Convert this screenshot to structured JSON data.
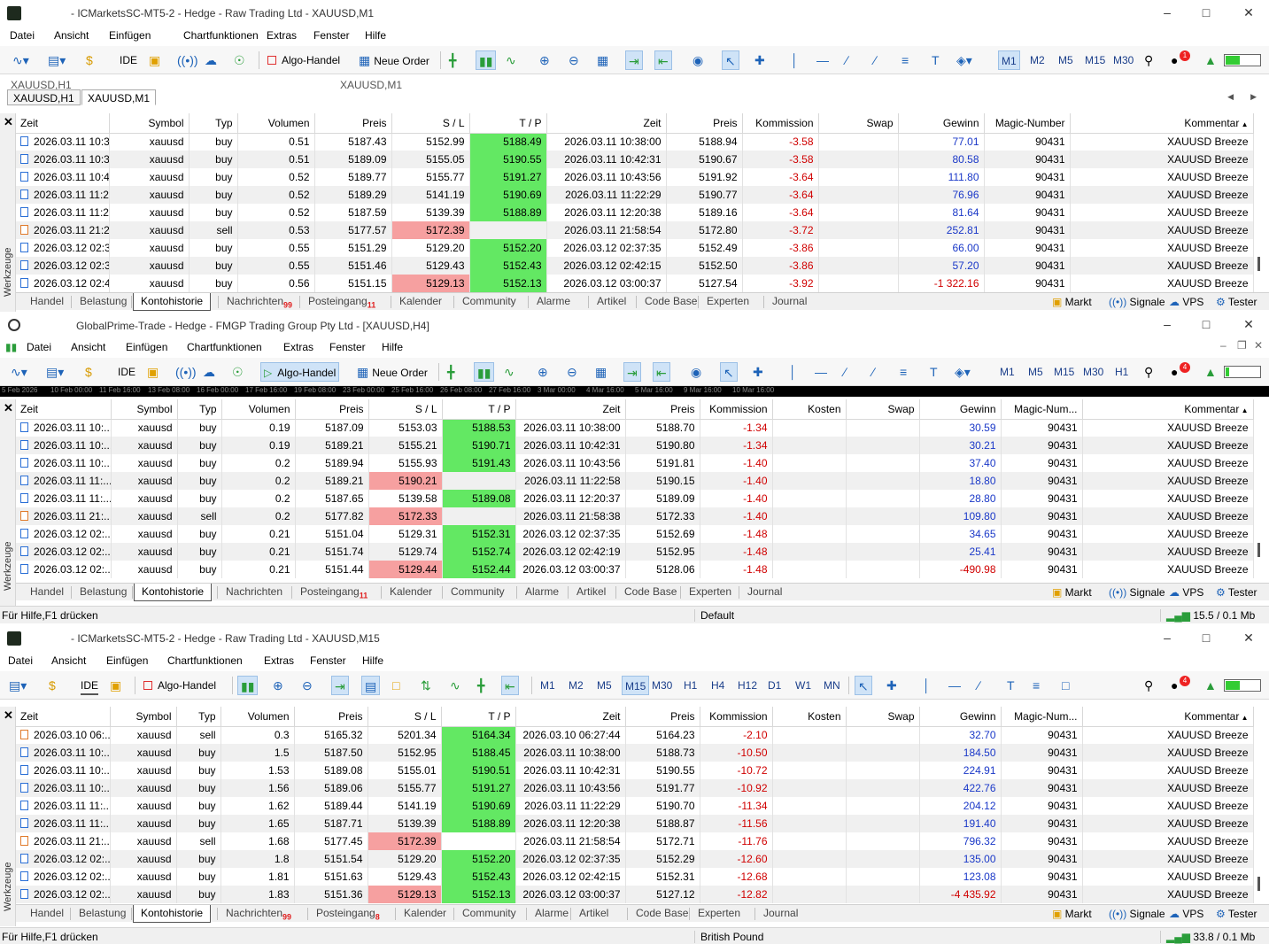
{
  "w1": {
    "title": "- ICMarketsSC-MT5-2 - Hedge - Raw Trading Ltd - XAUUSD,M1",
    "menu": [
      "Datei",
      "Ansicht",
      "Einfügen",
      "Chartfunktionen",
      "Extras",
      "Fenster",
      "Hilfe"
    ],
    "toolbar": {
      "ide": "IDE",
      "algo": "Algo-Handel",
      "neworder": "Neue Order",
      "tf": [
        "M1",
        "M2",
        "M5",
        "M15",
        "M30"
      ],
      "tf_selected": "M1",
      "badge": "1"
    },
    "tabs": [
      "XAUUSD,H1",
      "XAUUSD,M1"
    ],
    "ghosttabs": [
      "XAUUSD,H1",
      "XAUUSD,M1"
    ],
    "columns": [
      "Zeit",
      "Symbol",
      "Typ",
      "Volumen",
      "Preis",
      "S / L",
      "T / P",
      "Zeit",
      "Preis",
      "Kommission",
      "Swap",
      "Gewinn",
      "Magic-Number",
      "Kommentar"
    ],
    "rows": [
      [
        "2026.03.11 10:3...",
        "xauusd",
        "buy",
        "0.51",
        "5187.43",
        "5152.99",
        "5188.49",
        "2026.03.11 10:38:00",
        "5188.94",
        "-3.58",
        "",
        "77.01",
        "90431",
        "XAUUSD Breeze"
      ],
      [
        "2026.03.11 10:3...",
        "xauusd",
        "buy",
        "0.51",
        "5189.09",
        "5155.05",
        "5190.55",
        "2026.03.11 10:42:31",
        "5190.67",
        "-3.58",
        "",
        "80.58",
        "90431",
        "XAUUSD Breeze"
      ],
      [
        "2026.03.11 10:4...",
        "xauusd",
        "buy",
        "0.52",
        "5189.77",
        "5155.77",
        "5191.27",
        "2026.03.11 10:43:56",
        "5191.92",
        "-3.64",
        "",
        "111.80",
        "90431",
        "XAUUSD Breeze"
      ],
      [
        "2026.03.11 11:2...",
        "xauusd",
        "buy",
        "0.52",
        "5189.29",
        "5141.19",
        "5190.69",
        "2026.03.11 11:22:29",
        "5190.77",
        "-3.64",
        "",
        "76.96",
        "90431",
        "XAUUSD Breeze"
      ],
      [
        "2026.03.11 11:2...",
        "xauusd",
        "buy",
        "0.52",
        "5187.59",
        "5139.39",
        "5188.89",
        "2026.03.11 12:20:38",
        "5189.16",
        "-3.64",
        "",
        "81.64",
        "90431",
        "XAUUSD Breeze"
      ],
      [
        "2026.03.11 21:2...",
        "xauusd",
        "sell",
        "0.53",
        "5177.57",
        "5172.39",
        "",
        "2026.03.11 21:58:54",
        "5172.80",
        "-3.72",
        "",
        "252.81",
        "90431",
        "XAUUSD Breeze"
      ],
      [
        "2026.03.12 02:3...",
        "xauusd",
        "buy",
        "0.55",
        "5151.29",
        "5129.20",
        "5152.20",
        "2026.03.12 02:37:35",
        "5152.49",
        "-3.86",
        "",
        "66.00",
        "90431",
        "XAUUSD Breeze"
      ],
      [
        "2026.03.12 02:3...",
        "xauusd",
        "buy",
        "0.55",
        "5151.46",
        "5129.43",
        "5152.43",
        "2026.03.12 02:42:15",
        "5152.50",
        "-3.86",
        "",
        "57.20",
        "90431",
        "XAUUSD Breeze"
      ],
      [
        "2026.03.12 02:4...",
        "xauusd",
        "buy",
        "0.56",
        "5151.15",
        "5129.13",
        "5152.13",
        "2026.03.12 03:00:37",
        "5127.54",
        "-3.92",
        "",
        "-1 322.16",
        "90431",
        "XAUUSD Breeze"
      ]
    ],
    "bottomtabs": [
      "Handel",
      "Belastung",
      "Kontohistorie",
      "Nachrichten",
      "Posteingang",
      "Kalender",
      "Community",
      "Alarme",
      "Artikel",
      "Code Base",
      "Experten",
      "Journal"
    ],
    "nach_badge": "99",
    "post_badge": "11",
    "right": [
      "Markt",
      "Signale",
      "VPS",
      "Tester"
    ],
    "sidetext": "Werkzeuge"
  },
  "w2": {
    "title": "GlobalPrime-Trade - Hedge - FMGP Trading Group Pty Ltd - [XAUUSD,H4]",
    "menu": [
      "Datei",
      "Ansicht",
      "Einfügen",
      "Chartfunktionen",
      "Extras",
      "Fenster",
      "Hilfe"
    ],
    "toolbar": {
      "ide": "IDE",
      "algo": "Algo-Handel",
      "neworder": "Neue Order",
      "tf": [
        "M1",
        "M5",
        "M15",
        "M30",
        "H1"
      ],
      "badge": "4"
    },
    "axis": [
      "5 Feb 2026",
      "10 Feb 00:00",
      "11 Feb 16:00",
      "13 Feb 08:00",
      "16 Feb 00:00",
      "17 Feb 16:00",
      "19 Feb 08:00",
      "23 Feb 00:00",
      "25 Feb 16:00",
      "26 Feb 08:00",
      "27 Feb 16:00",
      "3 Mar 00:00",
      "4 Mar 16:00",
      "5 Mar 16:00",
      "9 Mar 16:00",
      "10 Mar 16:00"
    ],
    "columns": [
      "Zeit",
      "Symbol",
      "Typ",
      "Volumen",
      "Preis",
      "S / L",
      "T / P",
      "Zeit",
      "Preis",
      "Kommission",
      "Kosten",
      "Swap",
      "Gewinn",
      "Magic-Num...",
      "Kommentar"
    ],
    "rows": [
      [
        "2026.03.11 10:...",
        "xauusd",
        "buy",
        "0.19",
        "5187.09",
        "5153.03",
        "5188.53",
        "2026.03.11 10:38:00",
        "5188.70",
        "-1.34",
        "",
        "",
        "30.59",
        "90431",
        "XAUUSD Breeze"
      ],
      [
        "2026.03.11 10:...",
        "xauusd",
        "buy",
        "0.19",
        "5189.21",
        "5155.21",
        "5190.71",
        "2026.03.11 10:42:31",
        "5190.80",
        "-1.34",
        "",
        "",
        "30.21",
        "90431",
        "XAUUSD Breeze"
      ],
      [
        "2026.03.11 10:...",
        "xauusd",
        "buy",
        "0.2",
        "5189.94",
        "5155.93",
        "5191.43",
        "2026.03.11 10:43:56",
        "5191.81",
        "-1.40",
        "",
        "",
        "37.40",
        "90431",
        "XAUUSD Breeze"
      ],
      [
        "2026.03.11 11:...",
        "xauusd",
        "buy",
        "0.2",
        "5189.21",
        "5190.21",
        "",
        "2026.03.11 11:22:58",
        "5190.15",
        "-1.40",
        "",
        "",
        "18.80",
        "90431",
        "XAUUSD Breeze"
      ],
      [
        "2026.03.11 11:...",
        "xauusd",
        "buy",
        "0.2",
        "5187.65",
        "5139.58",
        "5189.08",
        "2026.03.11 12:20:37",
        "5189.09",
        "-1.40",
        "",
        "",
        "28.80",
        "90431",
        "XAUUSD Breeze"
      ],
      [
        "2026.03.11 21:...",
        "xauusd",
        "sell",
        "0.2",
        "5177.82",
        "5172.33",
        "",
        "2026.03.11 21:58:38",
        "5172.33",
        "-1.40",
        "",
        "",
        "109.80",
        "90431",
        "XAUUSD Breeze"
      ],
      [
        "2026.03.12 02:...",
        "xauusd",
        "buy",
        "0.21",
        "5151.04",
        "5129.31",
        "5152.31",
        "2026.03.12 02:37:35",
        "5152.69",
        "-1.48",
        "",
        "",
        "34.65",
        "90431",
        "XAUUSD Breeze"
      ],
      [
        "2026.03.12 02:...",
        "xauusd",
        "buy",
        "0.21",
        "5151.74",
        "5129.74",
        "5152.74",
        "2026.03.12 02:42:19",
        "5152.95",
        "-1.48",
        "",
        "",
        "25.41",
        "90431",
        "XAUUSD Breeze"
      ],
      [
        "2026.03.12 02:...",
        "xauusd",
        "buy",
        "0.21",
        "5151.44",
        "5129.44",
        "5152.44",
        "2026.03.12 03:00:37",
        "5128.06",
        "-1.48",
        "",
        "",
        "-490.98",
        "90431",
        "XAUUSD Breeze"
      ]
    ],
    "bottomtabs": [
      "Handel",
      "Belastung",
      "Kontohistorie",
      "Nachrichten",
      "Posteingang",
      "Kalender",
      "Community",
      "Alarme",
      "Artikel",
      "Code Base",
      "Experten",
      "Journal"
    ],
    "post_badge": "11",
    "status": {
      "help": "Für Hilfe,F1 drücken",
      "profile": "Default",
      "traffic": "15.5 / 0.1 Mb"
    }
  },
  "w3": {
    "title": "- ICMarketsSC-MT5-2 - Hedge - Raw Trading Ltd - XAUUSD,M15",
    "menu": [
      "Datei",
      "Ansicht",
      "Einfügen",
      "Chartfunktionen",
      "Extras",
      "Fenster",
      "Hilfe"
    ],
    "toolbar": {
      "ide": "IDE",
      "algo": "Algo-Handel",
      "tf": [
        "M1",
        "M2",
        "M5",
        "M15",
        "M30",
        "H1",
        "H4",
        "H12",
        "D1",
        "W1",
        "MN"
      ],
      "tf_selected": "M15",
      "badge": "4"
    },
    "columns": [
      "Zeit",
      "Symbol",
      "Typ",
      "Volumen",
      "Preis",
      "S / L",
      "T / P",
      "Zeit",
      "Preis",
      "Kommission",
      "Kosten",
      "Swap",
      "Gewinn",
      "Magic-Num...",
      "Kommentar"
    ],
    "rows": [
      [
        "2026.03.10 06:...",
        "xauusd",
        "sell",
        "0.3",
        "5165.32",
        "5201.34",
        "5164.34",
        "2026.03.10 06:27:44",
        "5164.23",
        "-2.10",
        "",
        "",
        "32.70",
        "90431",
        "XAUUSD Breeze"
      ],
      [
        "2026.03.11 10:...",
        "xauusd",
        "buy",
        "1.5",
        "5187.50",
        "5152.95",
        "5188.45",
        "2026.03.11 10:38:00",
        "5188.73",
        "-10.50",
        "",
        "",
        "184.50",
        "90431",
        "XAUUSD Breeze"
      ],
      [
        "2026.03.11 10:...",
        "xauusd",
        "buy",
        "1.53",
        "5189.08",
        "5155.01",
        "5190.51",
        "2026.03.11 10:42:31",
        "5190.55",
        "-10.72",
        "",
        "",
        "224.91",
        "90431",
        "XAUUSD Breeze"
      ],
      [
        "2026.03.11 10:...",
        "xauusd",
        "buy",
        "1.56",
        "5189.06",
        "5155.77",
        "5191.27",
        "2026.03.11 10:43:56",
        "5191.77",
        "-10.92",
        "",
        "",
        "422.76",
        "90431",
        "XAUUSD Breeze"
      ],
      [
        "2026.03.11 11:...",
        "xauusd",
        "buy",
        "1.62",
        "5189.44",
        "5141.19",
        "5190.69",
        "2026.03.11 11:22:29",
        "5190.70",
        "-11.34",
        "",
        "",
        "204.12",
        "90431",
        "XAUUSD Breeze"
      ],
      [
        "2026.03.11 11:...",
        "xauusd",
        "buy",
        "1.65",
        "5187.71",
        "5139.39",
        "5188.89",
        "2026.03.11 12:20:38",
        "5188.87",
        "-11.56",
        "",
        "",
        "191.40",
        "90431",
        "XAUUSD Breeze"
      ],
      [
        "2026.03.11 21:...",
        "xauusd",
        "sell",
        "1.68",
        "5177.45",
        "5172.39",
        "",
        "2026.03.11 21:58:54",
        "5172.71",
        "-11.76",
        "",
        "",
        "796.32",
        "90431",
        "XAUUSD Breeze"
      ],
      [
        "2026.03.12 02:...",
        "xauusd",
        "buy",
        "1.8",
        "5151.54",
        "5129.20",
        "5152.20",
        "2026.03.12 02:37:35",
        "5152.29",
        "-12.60",
        "",
        "",
        "135.00",
        "90431",
        "XAUUSD Breeze"
      ],
      [
        "2026.03.12 02:...",
        "xauusd",
        "buy",
        "1.81",
        "5151.63",
        "5129.43",
        "5152.43",
        "2026.03.12 02:42:15",
        "5152.31",
        "-12.68",
        "",
        "",
        "123.08",
        "90431",
        "XAUUSD Breeze"
      ],
      [
        "2026.03.12 02:...",
        "xauusd",
        "buy",
        "1.83",
        "5151.36",
        "5129.13",
        "5152.13",
        "2026.03.12 03:00:37",
        "5127.12",
        "-12.82",
        "",
        "",
        "-4 435.92",
        "90431",
        "XAUUSD Breeze"
      ]
    ],
    "bottomtabs": [
      "Handel",
      "Belastung",
      "Kontohistorie",
      "Nachrichten",
      "Posteingang",
      "Kalender",
      "Community",
      "Alarme",
      "Artikel",
      "Code Base",
      "Experten",
      "Journal"
    ],
    "nach_badge": "99",
    "post_badge": "8",
    "status": {
      "help": "Für Hilfe,F1 drücken",
      "profile": "British Pound",
      "traffic": "33.8 / 0.1 Mb"
    }
  },
  "colors": {
    "tp_hit": "#63e863",
    "sl_hit": "#f6a0a0",
    "profit": "#1a38c8",
    "loss": "#d00000"
  }
}
